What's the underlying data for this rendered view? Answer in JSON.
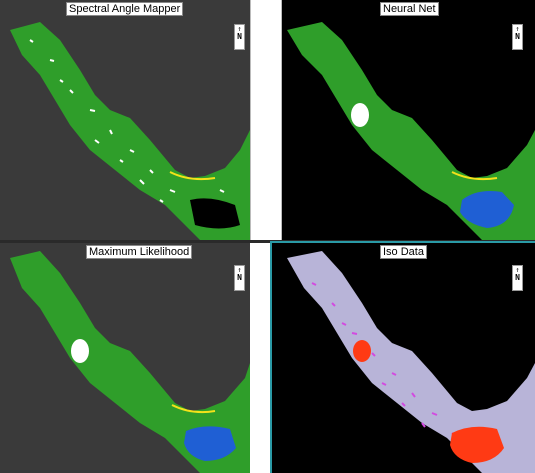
{
  "panels": [
    {
      "id": "sam",
      "title": "Spectral Angle Mapper",
      "north_label": "N",
      "background": "#3a3a3a",
      "land_color": "#2f9e2a",
      "speckle_color": "#ffffff",
      "dark_patch_color": "#000000"
    },
    {
      "id": "nn",
      "title": "Neural Net",
      "north_label": "N",
      "background": "#000000",
      "land_color": "#2f9e2a",
      "speckle_color": "#ffffff",
      "water_color": "#1f5fd4"
    },
    {
      "id": "ml",
      "title": "Maximum Likelihood",
      "north_label": "N",
      "background": "#3a3a3a",
      "land_color": "#2f9e2a",
      "speckle_color": "#ffffff",
      "water_color": "#1f5fd4"
    },
    {
      "id": "iso",
      "title": "Iso Data",
      "north_label": "N",
      "background": "#000000",
      "land_color": "#b8b4d8",
      "speckle_color": "#d24be0",
      "water_color": "#ff3a14"
    }
  ],
  "colors": {
    "beach": "#f3e21a",
    "bare_soil": "#8a3a1a",
    "highlight_border": "#2a9aa6"
  }
}
